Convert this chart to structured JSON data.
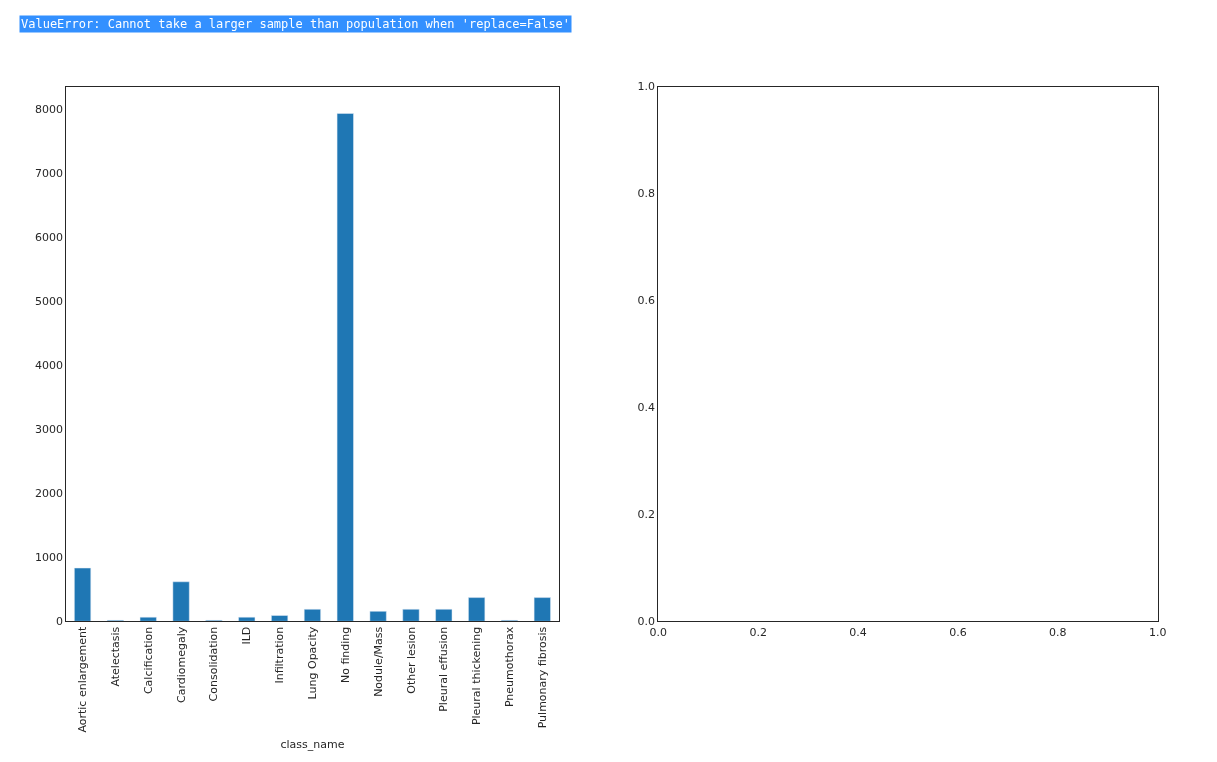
{
  "chart_data": [
    {
      "type": "bar",
      "xlabel": "class_name",
      "categories": [
        "Aortic enlargement",
        "Atelectasis",
        "Calcification",
        "Cardiomegaly",
        "Consolidation",
        "ILD",
        "Infiltration",
        "Lung Opacity",
        "No finding",
        "Nodule/Mass",
        "Other lesion",
        "Pleural effusion",
        "Pleural thickening",
        "Pneumothorax",
        "Pulmonary fibrosis"
      ],
      "values": [
        833,
        16,
        65,
        618,
        16,
        65,
        91,
        188,
        7940,
        156,
        188,
        188,
        371,
        16,
        371
      ],
      "color": "#1f77b4",
      "ylim": [
        0,
        8360
      ],
      "yticks": [
        0,
        1000,
        2000,
        3000,
        4000,
        5000,
        6000,
        7000,
        8000
      ],
      "grid": false,
      "legend": false,
      "annotations": [
        "ValueError: Cannot take a larger sample than population when 'replace=False'"
      ]
    },
    {
      "type": "scatter",
      "xlim": [
        0,
        1
      ],
      "ylim": [
        0,
        1
      ],
      "xticks": [
        {
          "value": 0,
          "label": "0.0"
        },
        {
          "value": 0.2,
          "label": "0.2"
        },
        {
          "value": 0.4,
          "label": "0.4"
        },
        {
          "value": 0.6,
          "label": "0.6"
        },
        {
          "value": 0.8,
          "label": "0.8"
        },
        {
          "value": 1,
          "label": "1.0"
        }
      ],
      "yticks": [
        {
          "value": 0,
          "label": "0.0"
        },
        {
          "value": 0.2,
          "label": "0.2"
        },
        {
          "value": 0.4,
          "label": "0.4"
        },
        {
          "value": 0.6,
          "label": "0.6"
        },
        {
          "value": 0.8,
          "label": "0.8"
        },
        {
          "value": 1,
          "label": "1.0"
        }
      ],
      "grid": false,
      "legend": false
    }
  ]
}
